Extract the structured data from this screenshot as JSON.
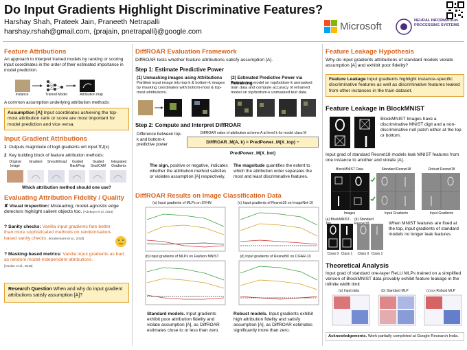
{
  "header": {
    "title": "Do Input Gradients Highlight Discriminative Features?",
    "authors": "Harshay Shah, Prateek Jain, Praneeth Netrapalli",
    "emails": "harshay.rshah@gmail.com, {prajain, pnetrapalli}@google.com",
    "logo_microsoft": "Microsoft",
    "logo_neurips": "NEURAL INFORMATION PROCESSING SYSTEMS"
  },
  "feature_attributions": {
    "heading": "Feature Attributions",
    "text": "An approach to interpret trained models by ranking or scoring input coordinates in the order of their estimated importance in model prediction.",
    "diagram_labels": [
      "Instance",
      "Trained Model",
      "Attribution map"
    ],
    "assumption_intro": "A common assumption underlying attribution methods:",
    "assumption_lead": "Assumption [A]",
    "assumption_text": "Input coordinates achieving the top-most attribution rank or score are most important for model prediction and vice versa."
  },
  "input_gradients": {
    "heading": "Input Gradient Attributions",
    "items": [
      "Outputs magnitude of logit gradients wrt input ∇ₓf(x)",
      "Key building block of feature attribution methods:"
    ],
    "item_numbers": [
      "1",
      "2"
    ],
    "methods": [
      "Original Image",
      "Gradient",
      "SmoothGrad",
      "Guided BackProp",
      "Guided GradCAM",
      "Integrated Gradients"
    ],
    "question": "Which attribution method should one use?"
  },
  "evaluating": {
    "heading": "Evaluating Attribution Fidelity / Quality",
    "items": [
      {
        "lead": "Visual inspection:",
        "text": "Misleading; model-agnostic edge detectors highlight salient objects too.",
        "ref": "[Adebayo et al. 2018]"
      },
      {
        "lead": "Sanity checks:",
        "text": "Vanilla input gradients fare better than more sophisticated methods on randomisation-based sanity checks.",
        "ref": "[Kindermans et al., 2018]"
      },
      {
        "lead": "Masking-based metrics:",
        "text": "Vanilla input gradients as bad as random model-independent attributions.",
        "ref": "[Hooker et al., 2018]"
      }
    ],
    "question_lead": "Research Question",
    "question_text": "When and why do input gradient attributions satisfy assumption [A]?"
  },
  "diffroar": {
    "heading": "DiffROAR Evaluation Framework",
    "intro": "DiffROAR tests whether feature attributions satisfy assumption [A].",
    "step1": "Step 1: Estimate Predictive Power",
    "step1a_title": "(1) Unmasking images using Attributions",
    "step1a_text": "Partition input image into top-k & bottom-k images by masking coordinates with bottom-most & top-most attributions.",
    "step1b_title": "(2) Estimated Predictive Power via Retraining",
    "step1b_text": "Retrain new model on top/bottom-k unmasked train data and compute accuracy of retrained model on top/bottom-k unmasked test data.",
    "step2": "Step 2: Compute and Interpret DiffROAR",
    "step2_text": "Difference between top-k and bottom-k predictive power",
    "formula_caption": "DiffROAR value of attribution scheme A at level k for model class M",
    "formula": "DiffROAR_M(A, k) = PredPower_M(X_top) − PredPower_M(X_bot)",
    "sign_lead": "The sign,",
    "sign_text": "positive or negative, indicates whether the attribution method satisfies or violates assumption [A] respectively.",
    "magnitude_lead": "The magnitude",
    "magnitude_text": "quantifies the extent to which the attribution order separates the most and least discriminative features."
  },
  "results": {
    "heading": "DiffROAR Results on Image Classification Data",
    "plots": [
      "(a) Input gradients of MLPs on SVHN",
      "(c) Input gradients of Resnet18 on ImageNet-10",
      "(b) Input gradients of MLPs on Fashion MNIST",
      "(d) Input gradients of Resnet50 on CIFAR-10"
    ],
    "standard_lead": "Standard models.",
    "standard_text": "Input gradients exhibit poor attribution fidelity and violate assumption [A], as DiffROAR estimates close to or less than zero.",
    "robust_lead": "Robust models.",
    "robust_text": "Input gradients exhibit high attribution fidelity and satisfy assumption [A], as DiffROAR estimates significantly more than zero."
  },
  "leakage": {
    "heading": "Feature Leakage Hypothesis",
    "intro": "Why do input gradients attributions of standard models violate assumption [A] and exhibit poor fidelity?",
    "box_lead": "Feature Leakage",
    "box_text": "Input gradients highlight instance-specific discriminative features as well as discriminative features leaked from other instances in the train dataset.",
    "blockmnist_heading": "Feature Leakage in BlockMNIST",
    "blockmnist_text": "BlockMNIST Images have a discriminative MNIST digit and a non-discriminative null patch either at the top or bottom.",
    "leak_text": "Input grad of standard Resnet18 models leak MNIST features from one instance to another and violate [A].",
    "grid_titles": [
      "BlockMNIST Data",
      "Standard Resnet18",
      "Robust Resnet18"
    ],
    "grid_captions": [
      "Images",
      "Input Gradients",
      "Input Gradients"
    ],
    "top_titles": [
      "(a) BlockMNIST-Top",
      "(b) Standard Resnet18"
    ],
    "class_labels": [
      "Class 0",
      "Class 1",
      "Class 0",
      "Class 1"
    ],
    "top_text": "When MNIST features are fixed at the top, input gradients of standard models no longer leak features"
  },
  "theory": {
    "heading": "Theoretical Analysis",
    "text": "Input grad of standard one-layer ReLU MLPs trained on a simplified version of BlockMNIST data provably exhibit feature leakage in the infinite width limit",
    "plots": [
      "(a) Input data",
      "(b) Standard MLP",
      "(c) ε∞ Robust MLP"
    ]
  },
  "acknowledgements": {
    "lead": "Acknowledgements.",
    "text": "Work partially completed at Google Research India."
  }
}
